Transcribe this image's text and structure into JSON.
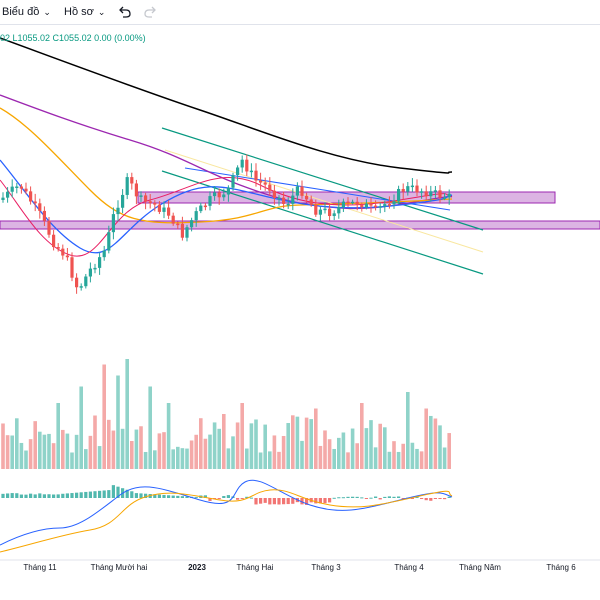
{
  "toolbar": {
    "chart_label": "Biểu đồ",
    "profile_label": "Hồ sơ",
    "undo_icon": "undo-icon",
    "redo_icon": "redo-icon"
  },
  "ohlc_readout": "02 L1055.02 C1055.02 0.00 (0.00%)",
  "colors": {
    "up": "#26a69a",
    "down": "#ef5350",
    "zone": "#9c27b0",
    "channel": "#089981",
    "ma_black": "#000000",
    "ma_purple": "#9c27b0",
    "ma_orange": "#f7a600",
    "ma_blue": "#2962ff"
  },
  "x_axis": {
    "labels": [
      {
        "text": "Tháng 11",
        "bold": false
      },
      {
        "text": "Tháng Mười hai",
        "bold": false
      },
      {
        "text": "2023",
        "bold": true
      },
      {
        "text": "Tháng Hai",
        "bold": false
      },
      {
        "text": "Tháng 3",
        "bold": false
      },
      {
        "text": "Tháng 4",
        "bold": false
      },
      {
        "text": "Tháng Năm",
        "bold": false
      },
      {
        "text": "Tháng 6",
        "bold": false
      }
    ]
  }
}
